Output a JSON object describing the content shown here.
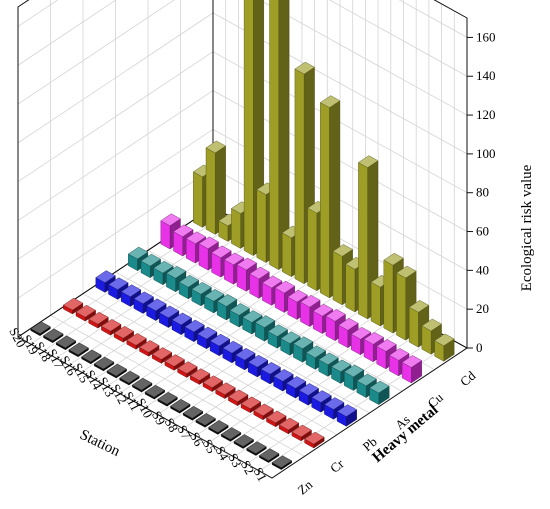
{
  "chart_data": {
    "type": "bar3d",
    "zlabel": "Ecological risk value",
    "xlabel": "Station",
    "ylabel": "Heavy metal",
    "zlim": [
      0,
      170
    ],
    "zticks": [
      0,
      20,
      40,
      60,
      80,
      100,
      120,
      140,
      160
    ],
    "grid": true,
    "stations": [
      "S1",
      "S2",
      "S3",
      "S4",
      "S5",
      "S6",
      "S7",
      "S8",
      "S9",
      "S10",
      "S11",
      "S12",
      "S13",
      "S14",
      "S15",
      "S16",
      "S17",
      "S18",
      "S19",
      "S20"
    ],
    "series": [
      {
        "name": "Zn",
        "color": "#111111",
        "values": [
          1,
          1,
          1,
          1,
          1,
          1,
          1,
          1,
          1,
          1,
          1,
          1,
          1,
          1,
          1,
          1,
          1,
          1,
          1,
          1
        ]
      },
      {
        "name": "Cr",
        "color": "#d21414",
        "values": [
          2,
          2,
          2,
          2,
          2,
          2,
          2,
          2,
          2,
          2,
          2,
          2,
          2,
          2,
          2,
          2,
          2,
          2,
          2,
          2
        ]
      },
      {
        "name": "Pb",
        "color": "#1a1ae0",
        "values": [
          5,
          5,
          5,
          5,
          5,
          5,
          5,
          5,
          5,
          5,
          5,
          5,
          5,
          5,
          5,
          5,
          5,
          5,
          5,
          5
        ]
      },
      {
        "name": "As",
        "color": "#1a8a8a",
        "values": [
          6,
          6,
          7,
          6,
          6,
          6,
          7,
          6,
          6,
          7,
          6,
          6,
          7,
          6,
          6,
          6,
          7,
          6,
          6,
          6
        ]
      },
      {
        "name": "Cu",
        "color": "#e832e8",
        "values": [
          8,
          8,
          9,
          9,
          8,
          9,
          10,
          9,
          10,
          9,
          10,
          9,
          10,
          11,
          10,
          10,
          11,
          10,
          10,
          12
        ]
      },
      {
        "name": "Cd",
        "color": "#9e9e26",
        "values": [
          8,
          12,
          18,
          32,
          35,
          20,
          78,
          22,
          25,
          98,
          40,
          108,
          20,
          150,
          35,
          165,
          18,
          8,
          42,
          26
        ]
      }
    ]
  }
}
